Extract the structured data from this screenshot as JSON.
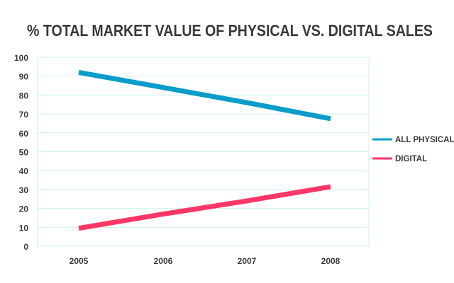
{
  "chart_data": {
    "type": "line",
    "title": "% TOTAL MARKET VALUE OF PHYSICAL VS. DIGITAL SALES",
    "xlabel": "",
    "ylabel": "",
    "categories": [
      "2005",
      "2006",
      "2007",
      "2008"
    ],
    "yticks": [
      "0",
      "10",
      "20",
      "30",
      "40",
      "50",
      "60",
      "70",
      "80",
      "90",
      "100"
    ],
    "ylim": [
      0,
      100
    ],
    "grid": true,
    "legend_position": "right",
    "series": [
      {
        "name": "ALL PHYSICAL",
        "values": [
          92,
          84,
          76,
          67.5
        ],
        "color": "#0a9cca"
      },
      {
        "name": "DIGITAL",
        "values": [
          9.5,
          17,
          24,
          31.5
        ],
        "color": "#fc3768"
      }
    ],
    "grid_color": "#c9f3ec"
  }
}
